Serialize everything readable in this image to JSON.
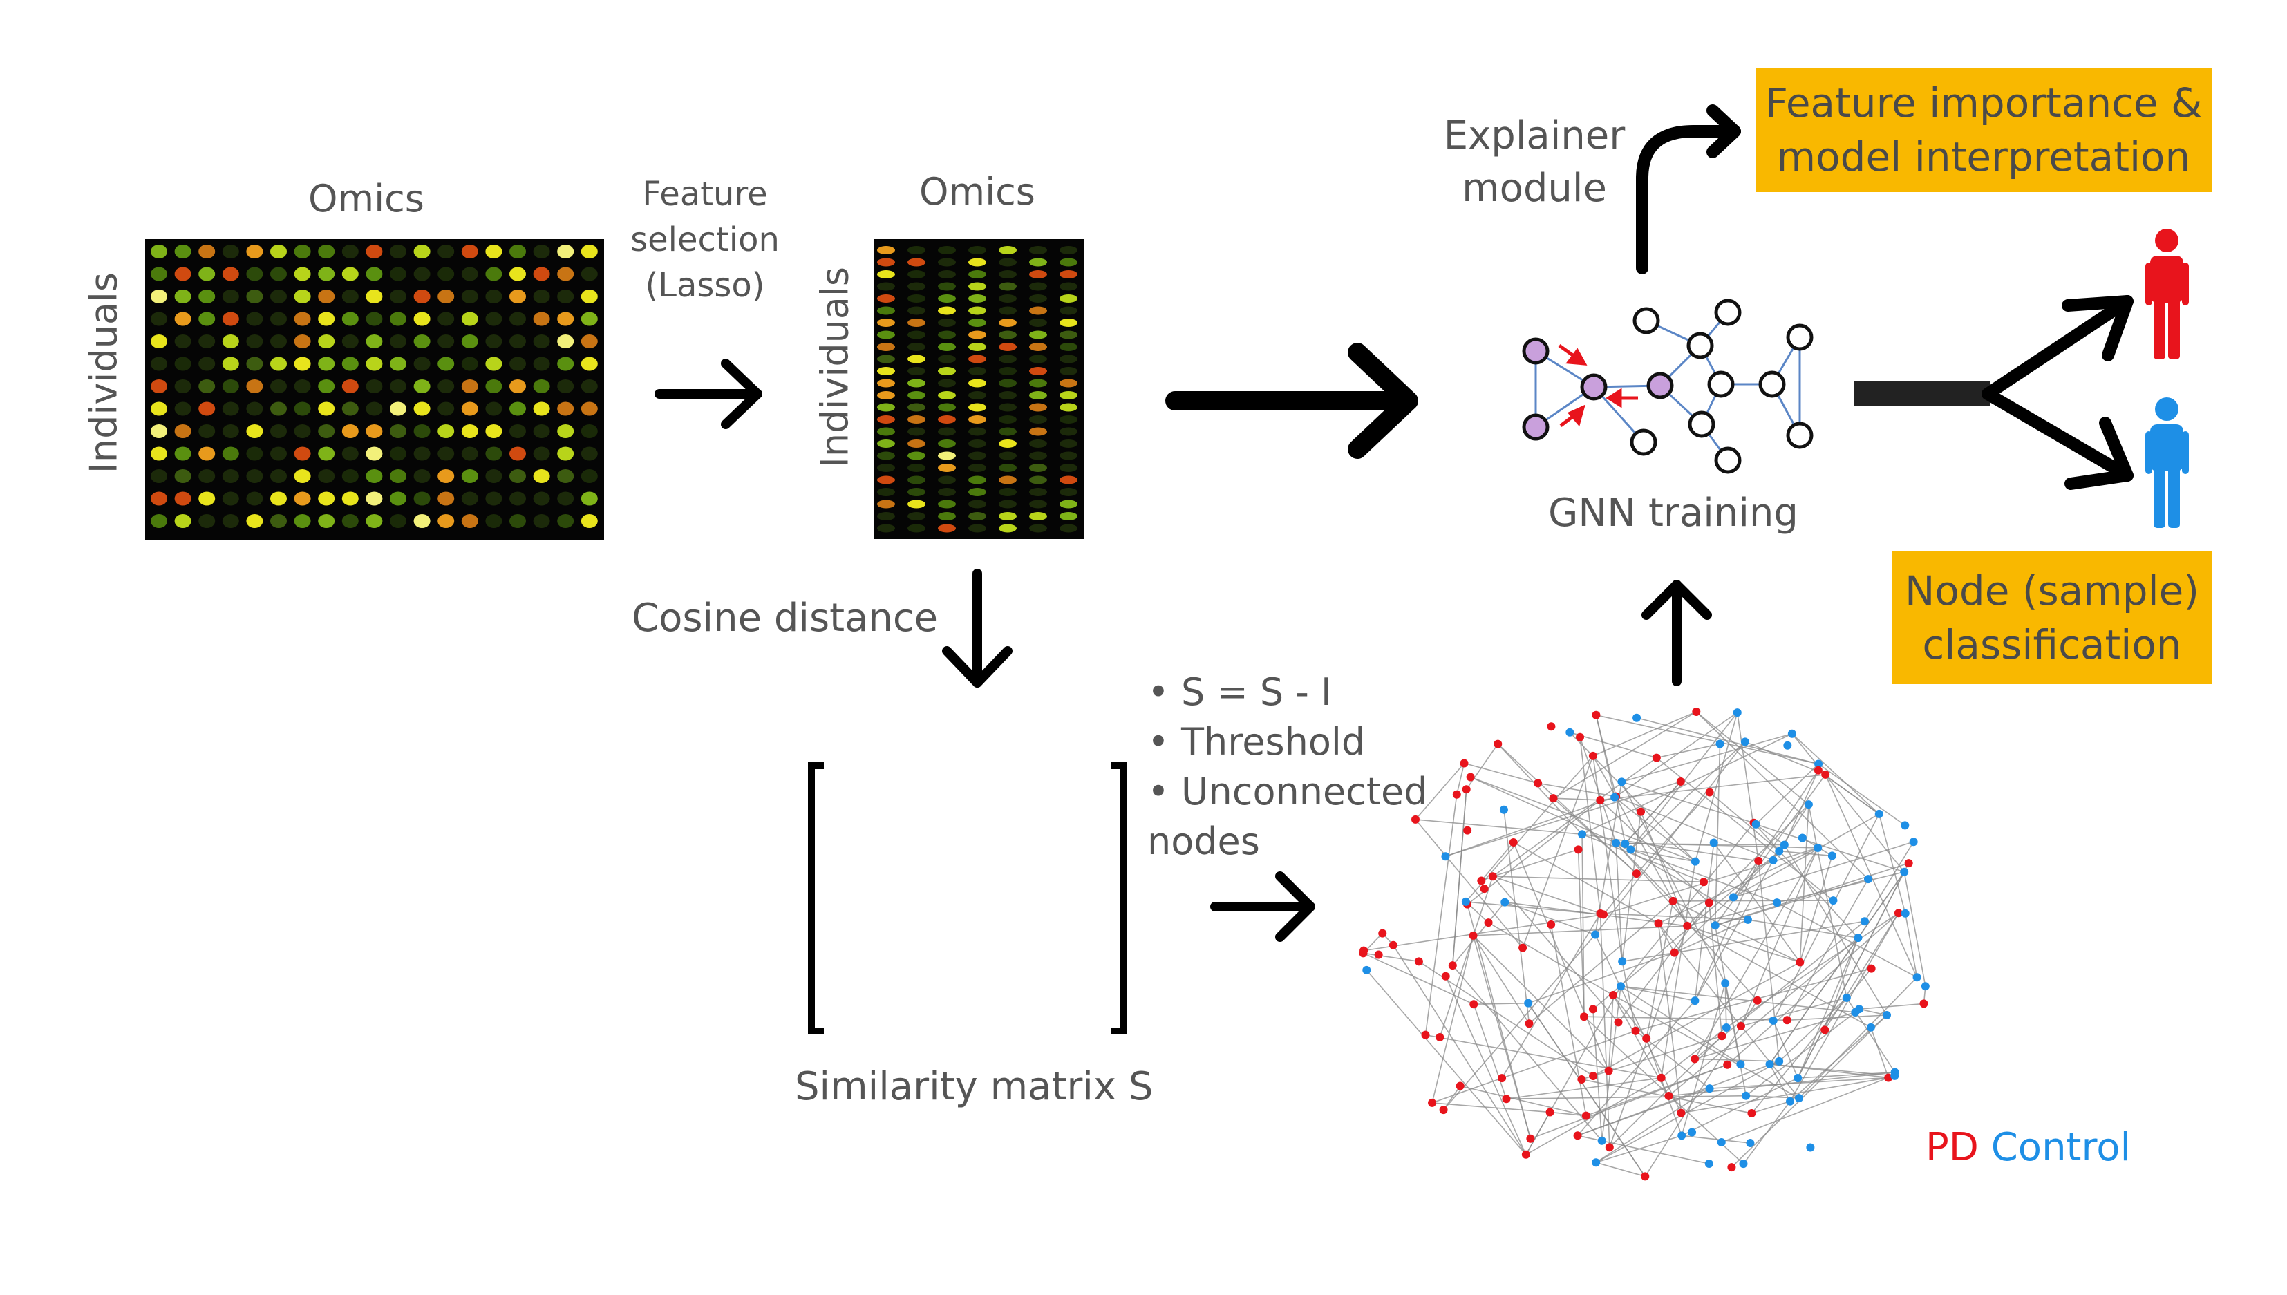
{
  "omics_left": {
    "title": "Omics",
    "ylabel": "Individuals"
  },
  "feature_selection": {
    "line1": "Feature",
    "line2": "selection",
    "line3": "(Lasso)"
  },
  "omics_right": {
    "title": "Omics",
    "ylabel": "Individuals"
  },
  "cosine_label": "Cosine distance",
  "similarity_label": "Similarity matrix S",
  "steps": [
    "• S = S - I",
    "• Threshold",
    "• Unconnected",
    "nodes"
  ],
  "explainer": {
    "line1": "Explainer",
    "line2": "module"
  },
  "gnn_label": "GNN training",
  "output_box_1": {
    "line1": "Feature importance &",
    "line2": "model interpretation"
  },
  "output_box_2": {
    "line1": "Node (sample)",
    "line2": "classification"
  },
  "legend": {
    "pd": "PD",
    "control": "Control"
  },
  "colors": {
    "pd": "#e8141c",
    "control": "#1e8fe6",
    "box": "#f9b800",
    "gnn_node": "#c9a0dc"
  }
}
